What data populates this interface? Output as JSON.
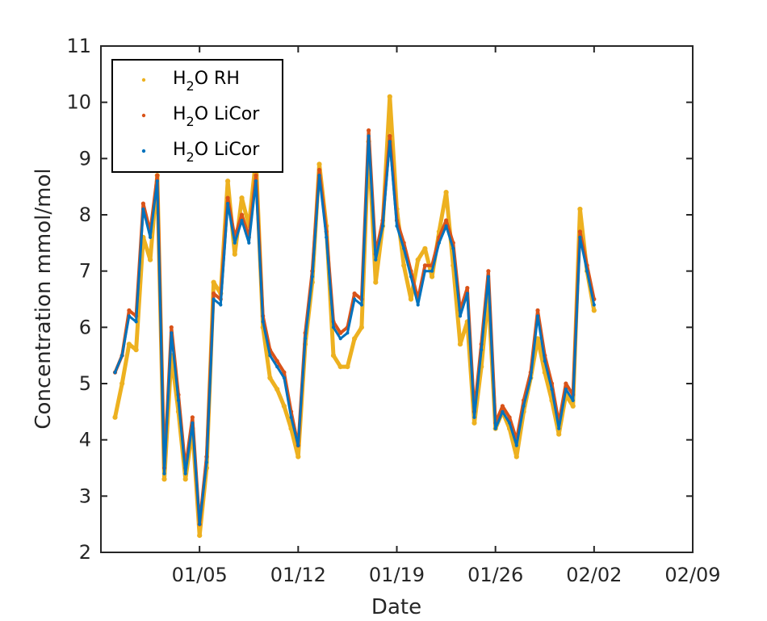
{
  "chart_data": {
    "type": "scatter",
    "xlabel": "Date",
    "ylabel": "Concentration mmol/mol",
    "ylim": [
      2,
      11
    ],
    "xlim": [
      "12/29",
      "02/09"
    ],
    "x_tick_labels": [
      "01/05",
      "01/12",
      "01/19",
      "01/26",
      "02/02",
      "02/09"
    ],
    "y_ticks": [
      2,
      3,
      4,
      5,
      6,
      7,
      8,
      9,
      10,
      11
    ],
    "grid": false,
    "legend_position": "top-left",
    "colors": {
      "axis": "#262626",
      "rh": "#EDB120",
      "licor_red": "#D95319",
      "licor_blue": "#0072BD"
    },
    "series": [
      {
        "name_main": "H",
        "name_sub": "2",
        "name_rest": "O RH",
        "color": "#EDB120",
        "x": [
          "12/30",
          "12/30 12h",
          "12/31",
          "12/31 12h",
          "01/01",
          "01/01 12h",
          "01/02",
          "01/02 12h",
          "01/03",
          "01/03 12h",
          "01/04",
          "01/04 12h",
          "01/05",
          "01/05 12h",
          "01/06",
          "01/06 12h",
          "01/07",
          "01/07 12h",
          "01/08",
          "01/08 12h",
          "01/09",
          "01/09 12h",
          "01/10",
          "01/10 12h",
          "01/11",
          "01/11 12h",
          "01/12",
          "01/12 12h",
          "01/13",
          "01/13 12h",
          "01/14",
          "01/14 12h",
          "01/15",
          "01/15 12h",
          "01/16",
          "01/16 12h",
          "01/17",
          "01/17 12h",
          "01/18",
          "01/18 12h",
          "01/19",
          "01/19 12h",
          "01/20",
          "01/20 12h",
          "01/21",
          "01/21 12h",
          "01/22",
          "01/22 12h",
          "01/23",
          "01/23 12h",
          "01/24",
          "01/24 12h",
          "01/25",
          "01/25 12h",
          "01/26",
          "01/26 12h",
          "01/27",
          "01/27 12h",
          "01/28",
          "01/28 12h",
          "01/29",
          "01/29 12h",
          "01/30",
          "01/30 12h",
          "01/31",
          "01/31 12h",
          "02/01",
          "02/01 12h",
          "02/02"
        ],
        "y": [
          4.4,
          5.0,
          5.7,
          5.6,
          7.6,
          7.2,
          8.7,
          3.3,
          5.5,
          4.5,
          3.3,
          4.2,
          2.3,
          3.5,
          6.8,
          6.6,
          8.6,
          7.3,
          8.3,
          7.8,
          9.0,
          6.0,
          5.1,
          4.9,
          4.6,
          4.2,
          3.7,
          5.7,
          6.8,
          8.9,
          7.8,
          5.5,
          5.3,
          5.3,
          5.8,
          6.0,
          9.3,
          6.8,
          7.8,
          10.1,
          8.1,
          7.1,
          6.5,
          7.2,
          7.4,
          6.9,
          7.7,
          8.4,
          7.1,
          5.7,
          6.1,
          4.3,
          5.3,
          6.6,
          4.2,
          4.5,
          4.2,
          3.7,
          4.5,
          5.1,
          5.8,
          5.2,
          4.7,
          4.1,
          4.8,
          4.6,
          8.1,
          7.0,
          6.3
        ]
      },
      {
        "name_main": "H",
        "name_sub": "2",
        "name_rest": "O LiCor",
        "color": "#D95319",
        "x": [
          "12/30",
          "12/30 12h",
          "12/31",
          "12/31 12h",
          "01/01",
          "01/01 12h",
          "01/02",
          "01/02 12h",
          "01/03",
          "01/03 12h",
          "01/04",
          "01/04 12h",
          "01/05",
          "01/05 12h",
          "01/06",
          "01/06 12h",
          "01/07",
          "01/07 12h",
          "01/08",
          "01/08 12h",
          "01/09",
          "01/09 12h",
          "01/10",
          "01/10 12h",
          "01/11",
          "01/11 12h",
          "01/12",
          "01/12 12h",
          "01/13",
          "01/13 12h",
          "01/14",
          "01/14 12h",
          "01/15",
          "01/15 12h",
          "01/16",
          "01/16 12h",
          "01/17",
          "01/17 12h",
          "01/18",
          "01/18 12h",
          "01/19",
          "01/19 12h",
          "01/20",
          "01/20 12h",
          "01/21",
          "01/21 12h",
          "01/22",
          "01/22 12h",
          "01/23",
          "01/23 12h",
          "01/24",
          "01/24 12h",
          "01/25",
          "01/25 12h",
          "01/26",
          "01/26 12h",
          "01/27",
          "01/27 12h",
          "01/28",
          "01/28 12h",
          "01/29",
          "01/29 12h",
          "01/30",
          "01/30 12h",
          "01/31",
          "01/31 12h",
          "02/01",
          "02/01 12h",
          "02/02"
        ],
        "y": [
          5.2,
          5.5,
          6.3,
          6.2,
          8.2,
          7.7,
          8.7,
          3.5,
          6.0,
          4.8,
          3.5,
          4.4,
          2.5,
          3.7,
          6.6,
          6.5,
          8.3,
          7.6,
          8.0,
          7.6,
          8.7,
          6.2,
          5.6,
          5.4,
          5.2,
          4.5,
          3.9,
          5.9,
          7.0,
          8.8,
          7.7,
          6.1,
          5.9,
          6.0,
          6.6,
          6.5,
          9.5,
          7.3,
          7.9,
          9.4,
          7.9,
          7.5,
          7.0,
          6.5,
          7.1,
          7.1,
          7.6,
          7.9,
          7.5,
          6.3,
          6.7,
          4.5,
          5.7,
          7.0,
          4.3,
          4.6,
          4.4,
          4.0,
          4.7,
          5.2,
          6.3,
          5.5,
          5.0,
          4.3,
          5.0,
          4.8,
          7.7,
          7.1,
          6.5
        ]
      },
      {
        "name_main": "H",
        "name_sub": "2",
        "name_rest": "O LiCor",
        "color": "#0072BD",
        "x": [
          "12/30",
          "12/30 12h",
          "12/31",
          "12/31 12h",
          "01/01",
          "01/01 12h",
          "01/02",
          "01/02 12h",
          "01/03",
          "01/03 12h",
          "01/04",
          "01/04 12h",
          "01/05",
          "01/05 12h",
          "01/06",
          "01/06 12h",
          "01/07",
          "01/07 12h",
          "01/08",
          "01/08 12h",
          "01/09",
          "01/09 12h",
          "01/10",
          "01/10 12h",
          "01/11",
          "01/11 12h",
          "01/12",
          "01/12 12h",
          "01/13",
          "01/13 12h",
          "01/14",
          "01/14 12h",
          "01/15",
          "01/15 12h",
          "01/16",
          "01/16 12h",
          "01/17",
          "01/17 12h",
          "01/18",
          "01/18 12h",
          "01/19",
          "01/19 12h",
          "01/20",
          "01/20 12h",
          "01/21",
          "01/21 12h",
          "01/22",
          "01/22 12h",
          "01/23",
          "01/23 12h",
          "01/24",
          "01/24 12h",
          "01/25",
          "01/25 12h",
          "01/26",
          "01/26 12h",
          "01/27",
          "01/27 12h",
          "01/28",
          "01/28 12h",
          "01/29",
          "01/29 12h",
          "01/30",
          "01/30 12h",
          "01/31",
          "01/31 12h",
          "02/01",
          "02/01 12h",
          "02/02"
        ],
        "y": [
          5.2,
          5.5,
          6.2,
          6.1,
          8.1,
          7.6,
          8.6,
          3.4,
          5.9,
          4.7,
          3.4,
          4.3,
          2.5,
          3.6,
          6.5,
          6.4,
          8.2,
          7.5,
          7.9,
          7.5,
          8.6,
          6.1,
          5.5,
          5.3,
          5.1,
          4.4,
          3.9,
          5.8,
          6.9,
          8.7,
          7.6,
          6.0,
          5.8,
          5.9,
          6.5,
          6.4,
          9.4,
          7.2,
          7.8,
          9.3,
          7.8,
          7.4,
          6.9,
          6.4,
          7.0,
          7.0,
          7.5,
          7.8,
          7.4,
          6.2,
          6.6,
          4.4,
          5.6,
          6.9,
          4.2,
          4.5,
          4.3,
          3.9,
          4.6,
          5.1,
          6.2,
          5.4,
          4.9,
          4.2,
          4.9,
          4.7,
          7.6,
          7.0,
          6.4
        ]
      }
    ]
  }
}
